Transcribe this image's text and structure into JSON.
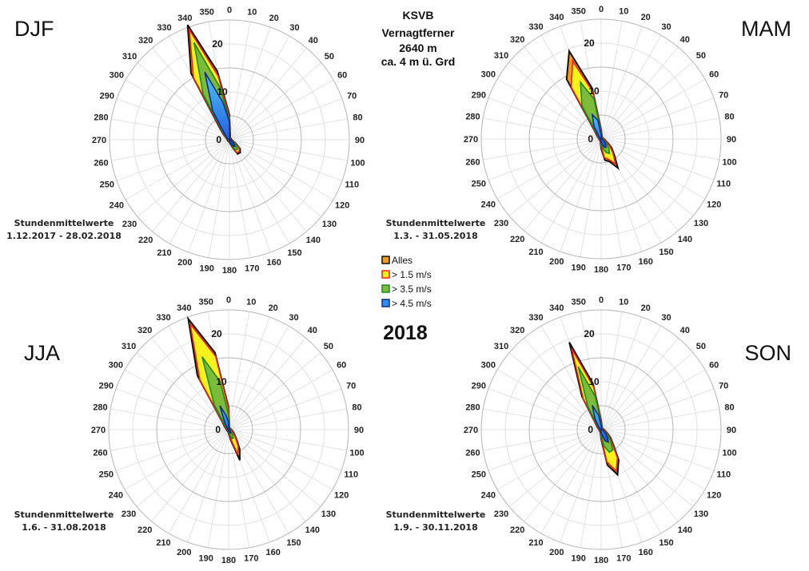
{
  "chart_data": {
    "type": "radar",
    "title": [
      "KSVB",
      "Vernagtferner",
      "2640 m",
      "ca. 4 m ü. Grd"
    ],
    "year_label": "2018",
    "directions": [
      0,
      10,
      20,
      30,
      40,
      50,
      60,
      70,
      80,
      90,
      100,
      110,
      120,
      130,
      140,
      150,
      160,
      170,
      180,
      190,
      200,
      210,
      220,
      230,
      240,
      250,
      260,
      270,
      280,
      290,
      300,
      310,
      320,
      330,
      340,
      350
    ],
    "radial_ticks": [
      0,
      10,
      20
    ],
    "radial_range": [
      0,
      25
    ],
    "legend": [
      {
        "name": "Alles",
        "stroke": "#111111",
        "fill": "#f59a1a"
      },
      {
        "name": "> 1.5 m/s",
        "stroke": "#e8231d",
        "fill": "#f7f21c"
      },
      {
        "name": "> 3.5 m/s",
        "stroke": "#1c8a1c",
        "fill": "#7dbb3a"
      },
      {
        "name": "> 4.5 m/s",
        "stroke": "#102a86",
        "fill": "#2f8ff0"
      }
    ],
    "panels": [
      {
        "season": "DJF",
        "period_label": "Stundenmittelwerte",
        "period": "1.12.2017 - 28.02.2018",
        "series": [
          {
            "name": "Alles",
            "values": [
              5.2,
              1,
              0.5,
              0.4,
              0.4,
              0.4,
              0.4,
              0.4,
              0.4,
              0.5,
              0.6,
              0.8,
              1.5,
              2.9,
              3.5,
              3.4,
              1.5,
              0.8,
              0.5,
              0.4,
              0.4,
              0.4,
              0.4,
              0.4,
              0.4,
              0.4,
              0.4,
              0.4,
              0.5,
              0.6,
              0.8,
              1.5,
              3,
              16,
              25.5,
              14.5
            ]
          },
          {
            "name": "> 1.5 m/s",
            "values": [
              4.8,
              0.8,
              0.4,
              0.3,
              0.3,
              0.3,
              0.3,
              0.3,
              0.3,
              0.4,
              0.5,
              0.7,
              1.3,
              2.6,
              3.2,
              3.1,
              1.3,
              0.6,
              0.4,
              0.3,
              0.3,
              0.3,
              0.3,
              0.3,
              0.3,
              0.3,
              0.3,
              0.3,
              0.4,
              0.5,
              0.7,
              1.3,
              2.5,
              15,
              24.5,
              13.5
            ]
          },
          {
            "name": "> 3.5 m/s",
            "values": [
              4.3,
              0.6,
              0.3,
              0.2,
              0.2,
              0.2,
              0.2,
              0.2,
              0.2,
              0.3,
              0.4,
              0.5,
              1,
              2,
              2.6,
              2.4,
              1,
              0.5,
              0.3,
              0.2,
              0.2,
              0.2,
              0.2,
              0.2,
              0.2,
              0.2,
              0.2,
              0.2,
              0.3,
              0.4,
              0.5,
              1,
              2,
              11,
              21.6,
              11
            ]
          },
          {
            "name": "> 4.5 m/s",
            "values": [
              3.8,
              0.4,
              0.2,
              0.1,
              0.1,
              0.1,
              0.1,
              0.1,
              0.1,
              0.2,
              0.3,
              0.4,
              0.6,
              1.2,
              1.8,
              1.5,
              0.6,
              0.3,
              0.2,
              0.1,
              0.1,
              0.1,
              0.1,
              0.1,
              0.1,
              0.1,
              0.1,
              0.1,
              0.2,
              0.3,
              0.4,
              0.7,
              1.5,
              7,
              15,
              8
            ]
          }
        ]
      },
      {
        "season": "MAM",
        "period_label": "Stundenmittelwerte",
        "period": "1.3. - 31.05.2018",
        "series": [
          {
            "name": "Alles",
            "values": [
              2,
              0.8,
              0.5,
              0.4,
              0.4,
              0.4,
              0.4,
              0.4,
              0.5,
              0.6,
              0.8,
              1,
              1.6,
              2.8,
              4.2,
              7,
              5,
              4.5,
              2,
              0.8,
              0.5,
              0.4,
              0.4,
              0.4,
              0.4,
              0.4,
              0.4,
              0.4,
              0.5,
              0.6,
              0.8,
              1.2,
              2,
              14.4,
              19.5,
              10.7
            ]
          },
          {
            "name": "> 1.5 m/s",
            "values": [
              1.8,
              0.6,
              0.4,
              0.3,
              0.3,
              0.3,
              0.3,
              0.3,
              0.4,
              0.5,
              0.7,
              0.9,
              1.4,
              2.4,
              3.8,
              6,
              4.5,
              4,
              1.6,
              0.6,
              0.4,
              0.3,
              0.3,
              0.3,
              0.3,
              0.3,
              0.3,
              0.3,
              0.4,
              0.5,
              0.7,
              1,
              1.8,
              12.5,
              17.3,
              10
            ]
          },
          {
            "name": "> 3.5 m/s",
            "values": [
              1.4,
              0.4,
              0.3,
              0.2,
              0.2,
              0.2,
              0.2,
              0.2,
              0.3,
              0.3,
              0.4,
              0.6,
              1,
              1.6,
              2.5,
              3.5,
              3,
              2,
              1,
              0.4,
              0.3,
              0.2,
              0.2,
              0.2,
              0.2,
              0.2,
              0.2,
              0.2,
              0.3,
              0.3,
              0.4,
              0.7,
              1.3,
              8,
              12.6,
              8.5
            ]
          },
          {
            "name": "> 4.5 m/s",
            "values": [
              1,
              0.3,
              0.2,
              0.1,
              0.1,
              0.1,
              0.1,
              0.1,
              0.2,
              0.2,
              0.3,
              0.4,
              0.6,
              1,
              1.5,
              2,
              1.8,
              1,
              0.5,
              0.3,
              0.2,
              0.1,
              0.1,
              0.1,
              0.1,
              0.1,
              0.1,
              0.1,
              0.2,
              0.2,
              0.3,
              0.5,
              0.8,
              3,
              5.4,
              4
            ]
          }
        ]
      },
      {
        "season": "JJA",
        "period_label": "Stundenmittelwerte",
        "period": "1.6. - 31.08.2018",
        "series": [
          {
            "name": "Alles",
            "values": [
              4.6,
              0.8,
              0.5,
              0.4,
              0.4,
              0.4,
              0.4,
              0.4,
              0.5,
              0.6,
              0.7,
              0.9,
              1.2,
              1.6,
              2.5,
              4.6,
              6.8,
              2,
              0.8,
              0.5,
              0.4,
              0.4,
              0.4,
              0.4,
              0.4,
              0.4,
              0.4,
              0.4,
              0.5,
              0.6,
              0.8,
              1.2,
              2,
              13,
              24.6,
              16.3
            ]
          },
          {
            "name": "> 1.5 m/s",
            "values": [
              4.3,
              0.6,
              0.4,
              0.3,
              0.3,
              0.3,
              0.3,
              0.3,
              0.4,
              0.5,
              0.6,
              0.8,
              1,
              1.4,
              2.2,
              4,
              5.5,
              1.6,
              0.6,
              0.4,
              0.3,
              0.3,
              0.3,
              0.3,
              0.3,
              0.3,
              0.3,
              0.3,
              0.4,
              0.5,
              0.7,
              1,
              1.8,
              12,
              23.5,
              15.5
            ]
          },
          {
            "name": "> 3.5 m/s",
            "values": [
              3,
              0.4,
              0.3,
              0.2,
              0.2,
              0.2,
              0.2,
              0.2,
              0.3,
              0.3,
              0.4,
              0.5,
              0.6,
              0.8,
              1.2,
              2,
              2,
              0.8,
              0.4,
              0.3,
              0.2,
              0.2,
              0.2,
              0.2,
              0.2,
              0.2,
              0.2,
              0.2,
              0.3,
              0.3,
              0.4,
              0.6,
              1.2,
              6,
              16.2,
              10.2
            ]
          },
          {
            "name": "> 4.5 m/s",
            "values": [
              1.5,
              0.2,
              0.1,
              0.1,
              0.1,
              0.1,
              0.1,
              0.1,
              0.1,
              0.2,
              0.2,
              0.3,
              0.3,
              0.4,
              0.5,
              0.8,
              0.7,
              0.4,
              0.2,
              0.1,
              0.1,
              0.1,
              0.1,
              0.1,
              0.1,
              0.1,
              0.1,
              0.1,
              0.1,
              0.2,
              0.2,
              0.3,
              0.5,
              1.5,
              5.3,
              3
            ]
          }
        ]
      },
      {
        "season": "SON",
        "period_label": "Stundenmittelwerte",
        "period": "1.9. - 30.11.2018",
        "series": [
          {
            "name": "Alles",
            "values": [
              2,
              0.8,
              0.5,
              0.4,
              0.4,
              0.4,
              0.4,
              0.4,
              0.5,
              0.6,
              0.8,
              1,
              1.5,
              2.5,
              3.8,
              7.3,
              10,
              7.5,
              2,
              0.8,
              0.5,
              0.4,
              0.4,
              0.4,
              0.4,
              0.4,
              0.4,
              0.4,
              0.5,
              0.6,
              0.8,
              1.2,
              2,
              8,
              19.4,
              9.7
            ]
          },
          {
            "name": "> 1.5 m/s",
            "values": [
              1.8,
              0.6,
              0.4,
              0.3,
              0.3,
              0.3,
              0.3,
              0.3,
              0.4,
              0.5,
              0.7,
              0.9,
              1.3,
              2.2,
              3.5,
              6.8,
              9.2,
              6.8,
              1.7,
              0.6,
              0.4,
              0.3,
              0.3,
              0.3,
              0.3,
              0.3,
              0.3,
              0.3,
              0.4,
              0.5,
              0.7,
              1,
              1.8,
              7.5,
              18,
              9
            ]
          },
          {
            "name": "> 3.5 m/s",
            "values": [
              1.4,
              0.4,
              0.3,
              0.2,
              0.2,
              0.2,
              0.2,
              0.2,
              0.3,
              0.3,
              0.4,
              0.6,
              1,
              1.8,
              3,
              4.9,
              5,
              3.5,
              1.1,
              0.4,
              0.3,
              0.2,
              0.2,
              0.2,
              0.2,
              0.2,
              0.2,
              0.2,
              0.3,
              0.3,
              0.4,
              0.7,
              1.3,
              5.5,
              14,
              7
            ]
          },
          {
            "name": "> 4.5 m/s",
            "values": [
              1,
              0.3,
              0.2,
              0.1,
              0.1,
              0.1,
              0.1,
              0.1,
              0.2,
              0.2,
              0.3,
              0.4,
              0.6,
              1.2,
              2,
              3,
              2.5,
              1.2,
              0.5,
              0.3,
              0.2,
              0.1,
              0.1,
              0.1,
              0.1,
              0.1,
              0.1,
              0.1,
              0.2,
              0.2,
              0.3,
              0.5,
              0.9,
              2.5,
              5.4,
              3
            ]
          }
        ]
      }
    ]
  }
}
